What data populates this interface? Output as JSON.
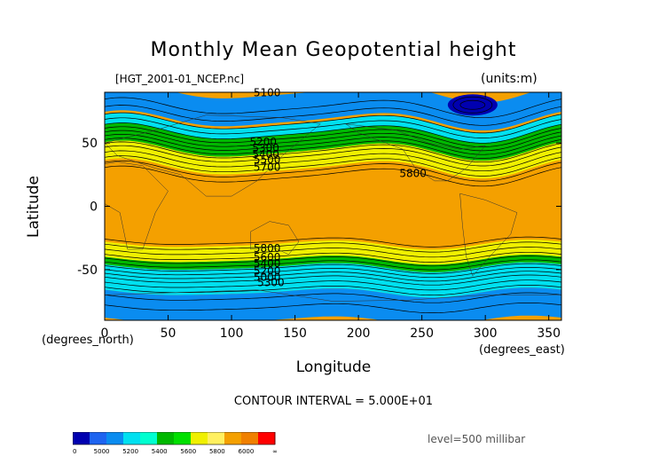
{
  "chart_data": {
    "type": "contour",
    "title": "Monthly Mean Geopotential height",
    "file_label": "[HGT_2001-01_NCEP.nc]",
    "units_label": "(units:m)",
    "xlabel": "Longitude",
    "ylabel": "Latitude",
    "x_unit": "(degrees_north)",
    "y_unit": "(degrees_east)",
    "xlim": [
      0,
      360
    ],
    "ylim": [
      -90,
      90
    ],
    "x_ticks": [
      0,
      50,
      100,
      150,
      200,
      250,
      300,
      350
    ],
    "y_ticks": [
      50,
      0,
      -50
    ],
    "contour_interval": "CONTOUR INTERVAL = 5.000E+01",
    "level": "level=500 millibar",
    "contour_labels": [
      {
        "text": "5100",
        "lon": 128,
        "lat": 87
      },
      {
        "text": "5200",
        "lon": 125,
        "lat": 48
      },
      {
        "text": "5300",
        "lon": 127,
        "lat": 43
      },
      {
        "text": "5400",
        "lon": 127,
        "lat": 38
      },
      {
        "text": "5500",
        "lon": 128,
        "lat": 34
      },
      {
        "text": "5700",
        "lon": 128,
        "lat": 28
      },
      {
        "text": "5800",
        "lon": 243,
        "lat": 23
      },
      {
        "text": "5800",
        "lon": 128,
        "lat": -36
      },
      {
        "text": "5600",
        "lon": 128,
        "lat": -43
      },
      {
        "text": "5400",
        "lon": 128,
        "lat": -48
      },
      {
        "text": "5200",
        "lon": 128,
        "lat": -54
      },
      {
        "text": "5000",
        "lon": 128,
        "lat": -59
      },
      {
        "text": "5300",
        "lon": 131,
        "lat": -63
      }
    ],
    "bands": {
      "north": [
        {
          "color": "#0000b0",
          "lat": [
            86,
            76
          ]
        },
        {
          "color": "#0a8cf0",
          "lat": [
            90,
            68
          ]
        },
        {
          "color": "#00e0f0",
          "lat": [
            66,
            58
          ]
        },
        {
          "color": "#00b800",
          "lat": [
            58,
            44
          ]
        },
        {
          "color": "#f0f000",
          "lat": [
            44,
            30
          ]
        },
        {
          "color": "#f4a000",
          "lat": [
            30,
            0
          ]
        }
      ],
      "south": [
        {
          "color": "#f4a000",
          "lat": [
            0,
            -30
          ]
        },
        {
          "color": "#f0f000",
          "lat": [
            -30,
            -42
          ]
        },
        {
          "color": "#00b800",
          "lat": [
            -42,
            -48
          ]
        },
        {
          "color": "#00e0f0",
          "lat": [
            -48,
            -68
          ]
        },
        {
          "color": "#0a8cf0",
          "lat": [
            -68,
            -90
          ]
        }
      ]
    },
    "colorbar": {
      "colors": [
        "#0000b0",
        "#1e64f0",
        "#0a8cf0",
        "#00e0f0",
        "#00ffd0",
        "#00b800",
        "#00e000",
        "#f0f000",
        "#fff060",
        "#f4a000",
        "#f08000",
        "#ff0000"
      ],
      "labels": [
        "0",
        "5000",
        "5200",
        "5400",
        "5600",
        "5800",
        "6000",
        "∞"
      ]
    }
  }
}
